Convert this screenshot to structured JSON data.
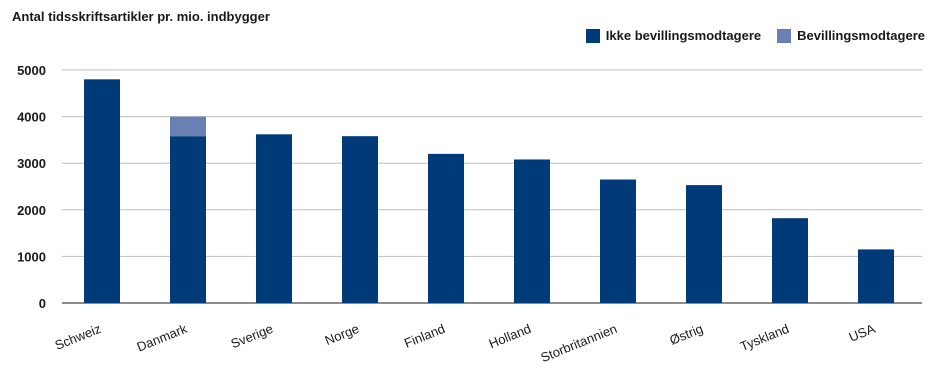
{
  "chart_data": {
    "type": "bar",
    "stacked": true,
    "title": "Antal tidsskriftsartikler pr. mio.  indbygger",
    "categories": [
      "Schweiz",
      "Danmark",
      "Sverige",
      "Norge",
      "Finland",
      "Holland",
      "Storbritannien",
      "Østrig",
      "Tyskland",
      "USA"
    ],
    "series": [
      {
        "name": "Ikke bevillingsmodtagere",
        "color": "#003a78",
        "values": [
          4800,
          3580,
          3620,
          3580,
          3200,
          3080,
          2650,
          2530,
          1820,
          1150
        ]
      },
      {
        "name": "Bevillingsmodtagere",
        "color": "#6a7fb4",
        "values": [
          0,
          420,
          0,
          0,
          0,
          0,
          0,
          0,
          0,
          0
        ]
      }
    ],
    "ylim": [
      0,
      5000
    ],
    "yticks": [
      0,
      1000,
      2000,
      3000,
      4000,
      5000
    ],
    "grid": true,
    "legend_position": "top-right"
  }
}
